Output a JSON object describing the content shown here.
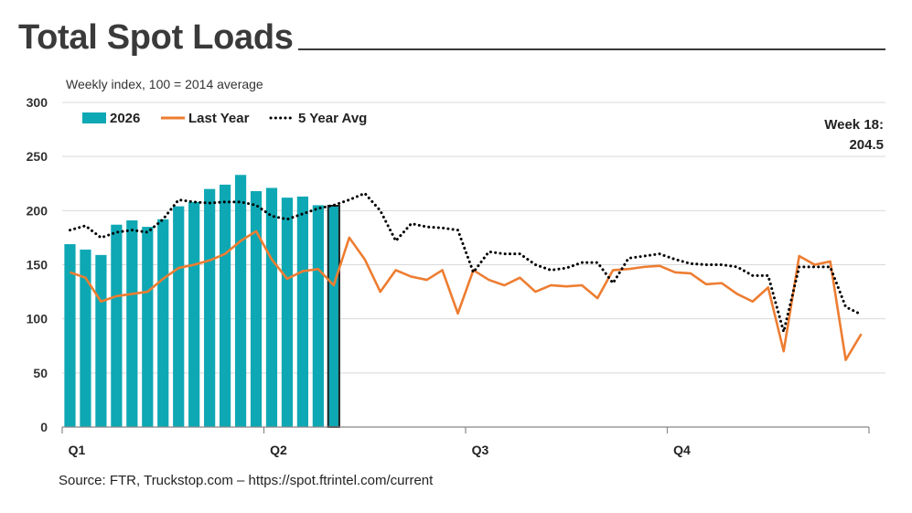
{
  "header": {
    "title": "Total Spot Loads",
    "subtitle": "Weekly index, 100 = 2014 average"
  },
  "annotation": {
    "line1": "Week 18:",
    "line2": "204.5"
  },
  "source": "Source: FTR, Truckstop.com – https://spot.ftrintel.com/current",
  "colors": {
    "bars": "#0ea8b4",
    "last_year": "#ed7d31",
    "avg": "#000000",
    "grid": "#d9d9d9"
  },
  "chart_data": {
    "type": "bar",
    "xlabel": "",
    "ylabel": "",
    "ylim": [
      0,
      300
    ],
    "yticks": [
      0,
      50,
      100,
      150,
      200,
      250,
      300
    ],
    "grid": true,
    "legend_position": "top-left",
    "x_weeks": 52,
    "quarter_labels": [
      {
        "label": "Q1",
        "week": 1
      },
      {
        "label": "Q2",
        "week": 14
      },
      {
        "label": "Q3",
        "week": 27
      },
      {
        "label": "Q4",
        "week": 40
      }
    ],
    "series": [
      {
        "name": "2026",
        "type": "bar",
        "values": [
          169,
          164,
          159,
          187,
          191,
          185,
          192,
          204,
          208,
          220,
          224,
          233,
          218,
          221,
          212,
          213,
          205,
          204.5
        ]
      },
      {
        "name": "Last Year",
        "type": "line",
        "values": [
          143,
          138,
          116,
          121,
          123,
          125,
          137,
          147,
          150,
          154,
          160,
          172,
          181,
          155,
          137,
          144,
          146,
          131,
          175,
          155,
          125,
          145,
          139,
          136,
          145,
          105,
          145,
          136,
          131,
          138,
          125,
          131,
          130,
          131,
          119,
          145,
          146,
          148,
          149,
          143,
          142,
          132,
          133,
          123,
          116,
          129,
          70,
          158,
          150,
          153,
          62,
          86
        ]
      },
      {
        "name": "5 Year Avg",
        "type": "dotted-line",
        "values": [
          182,
          186,
          175,
          180,
          182,
          180,
          192,
          210,
          208,
          207,
          208,
          208,
          205,
          195,
          192,
          197,
          202,
          205,
          210,
          216,
          200,
          172,
          188,
          185,
          184,
          182,
          143,
          162,
          160,
          160,
          150,
          145,
          147,
          152,
          152,
          133,
          156,
          158,
          160,
          155,
          151,
          150,
          150,
          148,
          140,
          140,
          88,
          148,
          148,
          148,
          111,
          104
        ]
      }
    ]
  }
}
